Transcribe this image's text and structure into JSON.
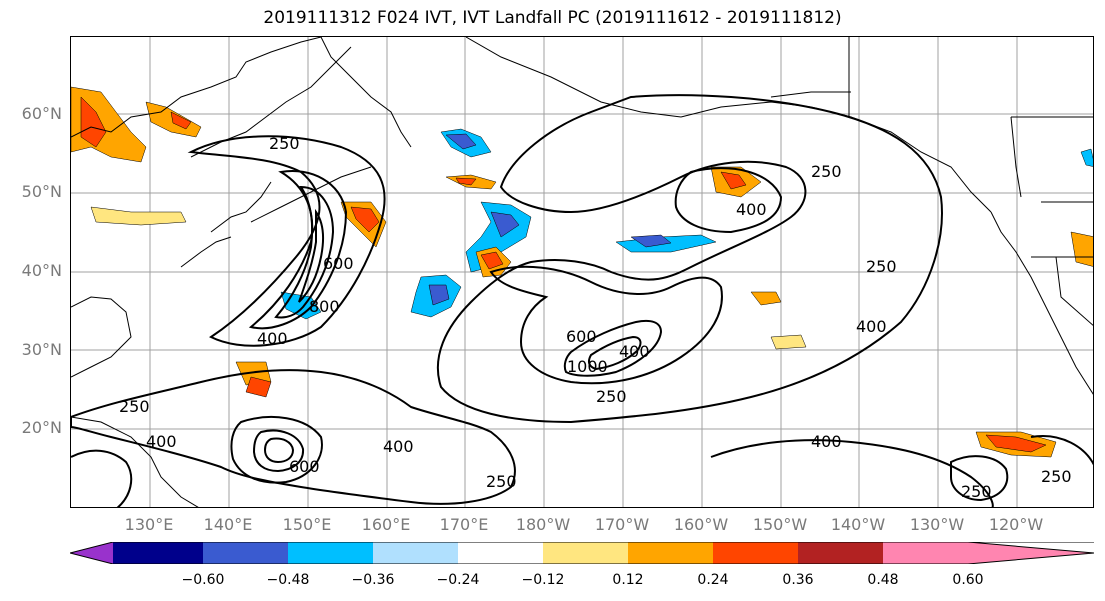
{
  "title": "2019111312 F024 IVT, IVT Landfall PC (2019111612 - 2019111812)",
  "latitude_labels": [
    "60°N",
    "50°N",
    "40°N",
    "30°N",
    "20°N"
  ],
  "longitude_labels": [
    "130°E",
    "140°E",
    "150°E",
    "160°E",
    "170°E",
    "180°W",
    "170°W",
    "160°W",
    "150°W",
    "140°W",
    "130°W",
    "120°W"
  ],
  "contour_labels": [
    "250",
    "400",
    "600",
    "800",
    "1000"
  ],
  "colorbar": {
    "ticks": [
      "−0.60",
      "−0.48",
      "−0.36",
      "−0.24",
      "−0.12",
      "0.12",
      "0.24",
      "0.36",
      "0.48",
      "0.60"
    ],
    "colors": [
      "#9932cc",
      "#00008b",
      "#3a5bd0",
      "#00bfff",
      "#b0e0fe",
      "#ffffff",
      "#ffe680",
      "#ffa500",
      "#ff4500",
      "#b22222",
      "#ff85b0"
    ]
  },
  "map_colors": {
    "land_outline": "#000000",
    "grid": "#a0a0a0",
    "contour": "#000000"
  }
}
